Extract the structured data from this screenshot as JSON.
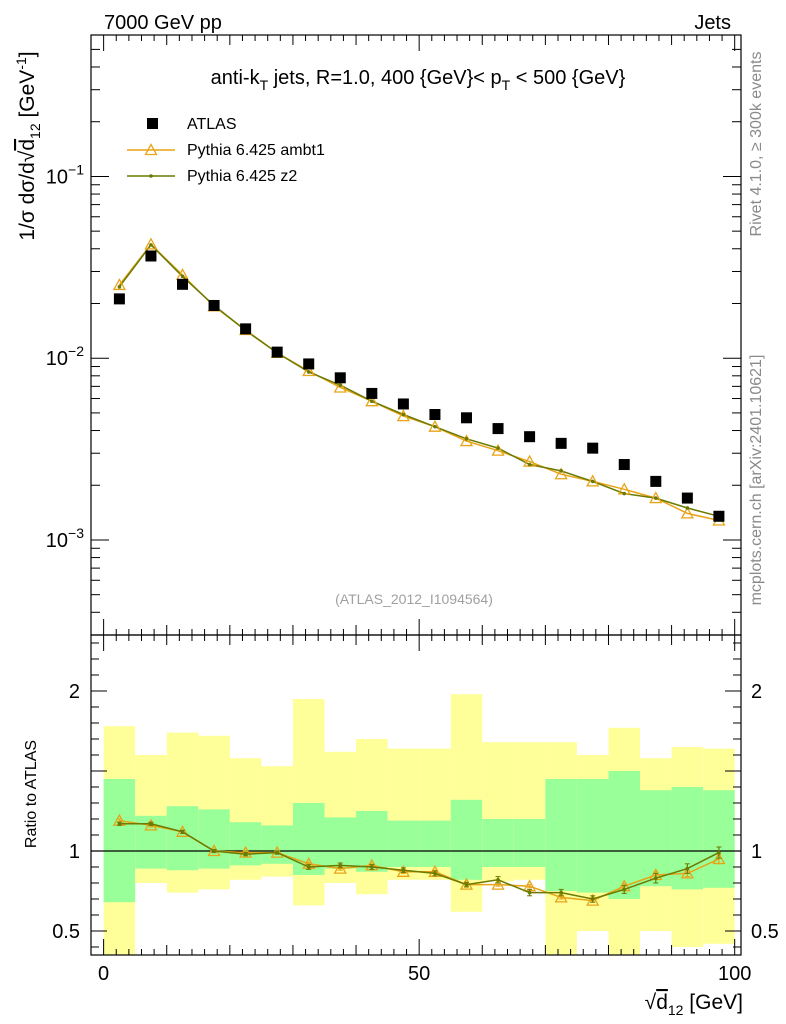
{
  "header": {
    "left": "7000 GeV pp",
    "right": "Jets"
  },
  "side_labels": {
    "rivet": "Rivet 4.1.0, ≥ 300k events",
    "mcplots": "mcplots.cern.ch [arXiv:2401.10621]"
  },
  "chart_data": [
    {
      "type": "scatter",
      "name": "main",
      "title": {
        "pre": "anti-k",
        "sub": "T",
        "post": " jets, R=1.0, 400 {GeV}< p",
        "sub2": "T",
        "post2": " < 500 {GeV}"
      },
      "ylabel": {
        "pre": "1/σ dσ/d√",
        "rad": "d",
        "rad_sub": "12",
        "post": " [GeV",
        "sup": "-1",
        "end": "]"
      },
      "yscale": "log",
      "ylim": [
        0.0003,
        0.6
      ],
      "xlim": [
        -2,
        101
      ],
      "yticks": [
        {
          "value": 0.1,
          "mant": "10",
          "exp": "−1"
        },
        {
          "value": 0.01,
          "mant": "10",
          "exp": "−2"
        },
        {
          "value": 0.001,
          "mant": "10",
          "exp": "−3"
        }
      ],
      "watermark": "(ATLAS_2012_I1094564)",
      "legend": [
        "ATLAS",
        "Pythia 6.425 ambt1",
        "Pythia 6.425 z2"
      ],
      "x": [
        2.5,
        7.5,
        12.5,
        17.5,
        22.5,
        27.5,
        32.5,
        37.5,
        42.5,
        47.5,
        52.5,
        57.5,
        62.5,
        67.5,
        72.5,
        77.5,
        82.5,
        87.5,
        92.5,
        97.5
      ],
      "series": [
        {
          "name": "ATLAS",
          "color": "#000000",
          "values": [
            0.0212,
            0.0365,
            0.0255,
            0.0195,
            0.0145,
            0.0108,
            0.0093,
            0.0078,
            0.0064,
            0.0056,
            0.0049,
            0.0047,
            0.0041,
            0.0037,
            0.0034,
            0.0032,
            0.0026,
            0.0021,
            0.0017,
            0.00135
          ]
        },
        {
          "name": "Pythia 6.425 ambt1",
          "color": "#e8a317",
          "values": [
            0.0253,
            0.0423,
            0.0287,
            0.0193,
            0.0143,
            0.0107,
            0.0085,
            0.0069,
            0.0058,
            0.0048,
            0.0042,
            0.0035,
            0.0031,
            0.0027,
            0.0023,
            0.0021,
            0.0019,
            0.0017,
            0.0014,
            0.00128
          ]
        },
        {
          "name": "Pythia 6.425 z2",
          "color": "#6b7a00",
          "values": [
            0.0247,
            0.042,
            0.0282,
            0.0195,
            0.0142,
            0.0107,
            0.0084,
            0.0071,
            0.0058,
            0.0049,
            0.0042,
            0.0036,
            0.0032,
            0.0026,
            0.0024,
            0.0021,
            0.0018,
            0.0017,
            0.0015,
            0.00135
          ]
        }
      ]
    },
    {
      "type": "scatter",
      "name": "ratio",
      "ylabel": "Ratio to ATLAS",
      "xlabel": {
        "rad": "d",
        "rad_sub": "12",
        "post": " [GeV]"
      },
      "ylim": [
        0.35,
        2.35
      ],
      "xlim": [
        -2,
        101
      ],
      "xticks": [
        0,
        50,
        100
      ],
      "yticks": [
        0.5,
        1,
        2
      ],
      "x": [
        2.5,
        7.5,
        12.5,
        17.5,
        22.5,
        27.5,
        32.5,
        37.5,
        42.5,
        47.5,
        52.5,
        57.5,
        62.5,
        67.5,
        72.5,
        77.5,
        82.5,
        87.5,
        92.5,
        97.5
      ],
      "band_outer_lo": [
        0.35,
        0.8,
        0.74,
        0.76,
        0.82,
        0.84,
        0.66,
        0.8,
        0.73,
        0.82,
        0.82,
        0.62,
        0.81,
        0.82,
        0.35,
        0.5,
        0.35,
        0.5,
        0.4,
        0.42
      ],
      "band_outer_hi": [
        1.78,
        1.6,
        1.74,
        1.72,
        1.58,
        1.53,
        1.95,
        1.62,
        1.7,
        1.64,
        1.64,
        1.98,
        1.68,
        1.68,
        1.68,
        1.6,
        1.77,
        1.58,
        1.65,
        1.64
      ],
      "band_inner_lo": [
        0.68,
        0.89,
        0.88,
        0.89,
        0.91,
        0.92,
        0.85,
        0.89,
        0.87,
        0.9,
        0.9,
        0.82,
        0.9,
        0.9,
        0.75,
        0.74,
        0.7,
        0.78,
        0.76,
        0.77
      ],
      "band_inner_hi": [
        1.45,
        1.22,
        1.28,
        1.26,
        1.18,
        1.16,
        1.3,
        1.21,
        1.25,
        1.19,
        1.19,
        1.32,
        1.2,
        1.2,
        1.45,
        1.45,
        1.5,
        1.38,
        1.4,
        1.38
      ],
      "series": [
        {
          "name": "Pythia 6.425 ambt1",
          "color": "#e8a317",
          "values": [
            1.19,
            1.16,
            1.12,
            1.0,
            0.99,
            0.99,
            0.92,
            0.89,
            0.91,
            0.87,
            0.87,
            0.79,
            0.79,
            0.78,
            0.71,
            0.69,
            0.78,
            0.85,
            0.86,
            0.95
          ],
          "errors": [
            0.01,
            0.01,
            0.01,
            0.01,
            0.01,
            0.01,
            0.01,
            0.01,
            0.01,
            0.01,
            0.01,
            0.01,
            0.01,
            0.01,
            0.01,
            0.01,
            0.015,
            0.02,
            0.02,
            0.03
          ]
        },
        {
          "name": "Pythia 6.425 z2",
          "color": "#6b7a00",
          "values": [
            1.17,
            1.17,
            1.12,
            1.0,
            0.98,
            0.99,
            0.9,
            0.91,
            0.9,
            0.88,
            0.86,
            0.79,
            0.82,
            0.74,
            0.74,
            0.7,
            0.76,
            0.83,
            0.89,
            0.99
          ],
          "errors": [
            0.01,
            0.01,
            0.01,
            0.01,
            0.01,
            0.01,
            0.015,
            0.015,
            0.015,
            0.015,
            0.015,
            0.015,
            0.02,
            0.02,
            0.02,
            0.02,
            0.025,
            0.03,
            0.03,
            0.035
          ]
        }
      ]
    }
  ]
}
